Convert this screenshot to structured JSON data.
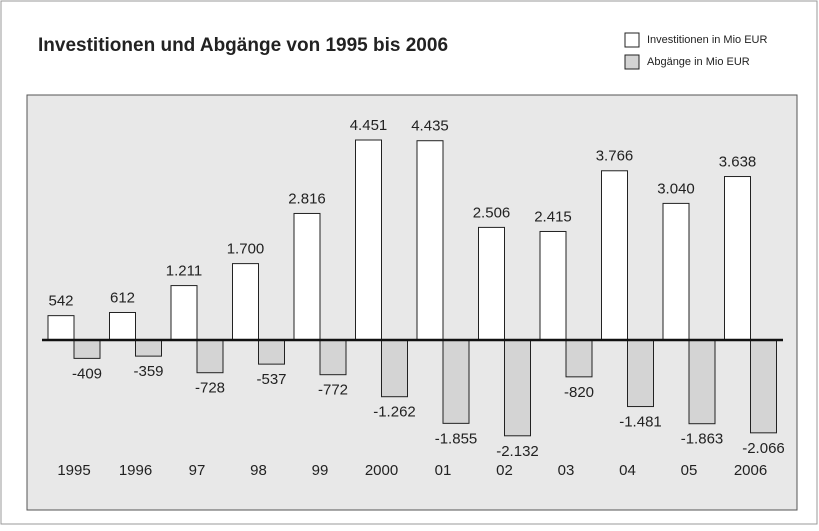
{
  "chart_data": {
    "type": "bar",
    "title": "Investitionen und Abgänge von 1995 bis 2006",
    "categories": [
      "1995",
      "1996",
      "97",
      "98",
      "99",
      "2000",
      "01",
      "02",
      "03",
      "04",
      "05",
      "2006"
    ],
    "series": [
      {
        "name": "Investitionen in Mio EUR",
        "color": "#ffffff",
        "values": [
          542,
          612,
          1211,
          1700,
          2816,
          4451,
          4435,
          2506,
          2415,
          3766,
          3040,
          3638
        ],
        "value_labels": [
          "542",
          "612",
          "1.211",
          "1.700",
          "2.816",
          "4.451",
          "4.435",
          "2.506",
          "2.415",
          "3.766",
          "3.040",
          "3.638"
        ]
      },
      {
        "name": "Abgänge in Mio EUR",
        "color": "#d4d4d4",
        "values": [
          -409,
          -359,
          -728,
          -537,
          -772,
          -1262,
          -1855,
          -2132,
          -820,
          -1481,
          -1863,
          -2066
        ],
        "value_labels": [
          "-409",
          "-359",
          "-728",
          "-537",
          "-772",
          "-1.262",
          "-1.855",
          "-2.132",
          "-820",
          "-1.481",
          "-1.863",
          "-2.066"
        ]
      }
    ]
  }
}
